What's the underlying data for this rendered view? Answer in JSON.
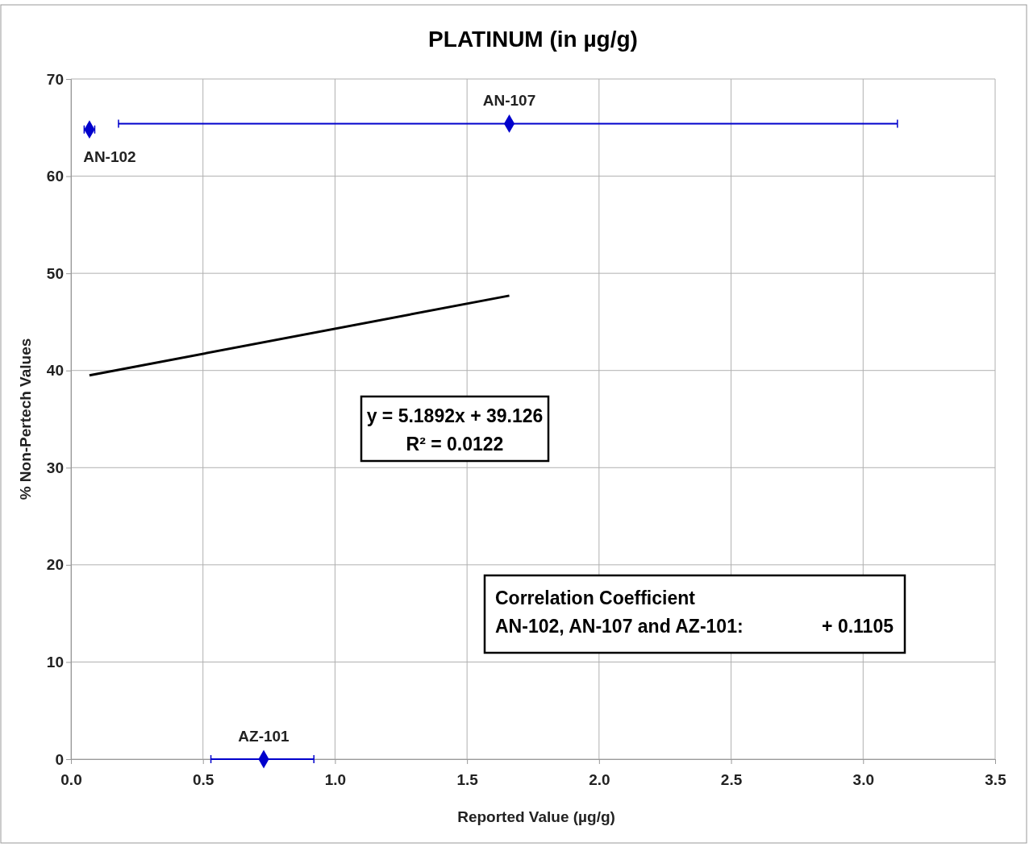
{
  "chart_data": {
    "type": "scatter",
    "title": "PLATINUM (in µg/g)",
    "xlabel": "Reported Value (µg/g)",
    "ylabel": "% Non-Pertech Values",
    "xlim": [
      0,
      3.5
    ],
    "xticks": [
      {
        "value": 0,
        "label": "0.0"
      },
      {
        "value": 0.5,
        "label": "0.5"
      },
      {
        "value": 1,
        "label": "1.0"
      },
      {
        "value": 1.5,
        "label": "1.5"
      },
      {
        "value": 2,
        "label": "2.0"
      },
      {
        "value": 2.5,
        "label": "2.5"
      },
      {
        "value": 3,
        "label": "3.0"
      },
      {
        "value": 3.5,
        "label": "3.5"
      }
    ],
    "ylim": [
      0,
      70
    ],
    "yticks": [
      0,
      10,
      20,
      30,
      40,
      50,
      60,
      70
    ],
    "grid": true,
    "series": [
      {
        "color": "#0000cc",
        "marker": "diamond",
        "x": [
          0.07,
          1.66,
          0.73
        ],
        "values": [
          64.8,
          65.4,
          0
        ],
        "xerrors": [
          [
            0.05,
            0.09
          ],
          [
            0.18,
            3.13
          ],
          [
            0.53,
            0.92
          ]
        ]
      },
      {
        "type": "line",
        "color": "#000000",
        "marker": "none",
        "x": [
          0.07,
          1.66
        ],
        "values": [
          39.5,
          47.7
        ]
      }
    ],
    "annotations": [
      {
        "text": "AN-102",
        "x": 0.07,
        "y": 64.8
      },
      {
        "text": "AN-107",
        "x": 1.66,
        "y": 65.4
      },
      {
        "text": "AZ-101",
        "x": 0.73,
        "y": 0
      },
      "y = 5.1892x + 39.126\nR² = 0.0122",
      "Correlation Coefficient\nAN-102, AN-107 and AZ-101:\t+ 0.1105"
    ]
  }
}
